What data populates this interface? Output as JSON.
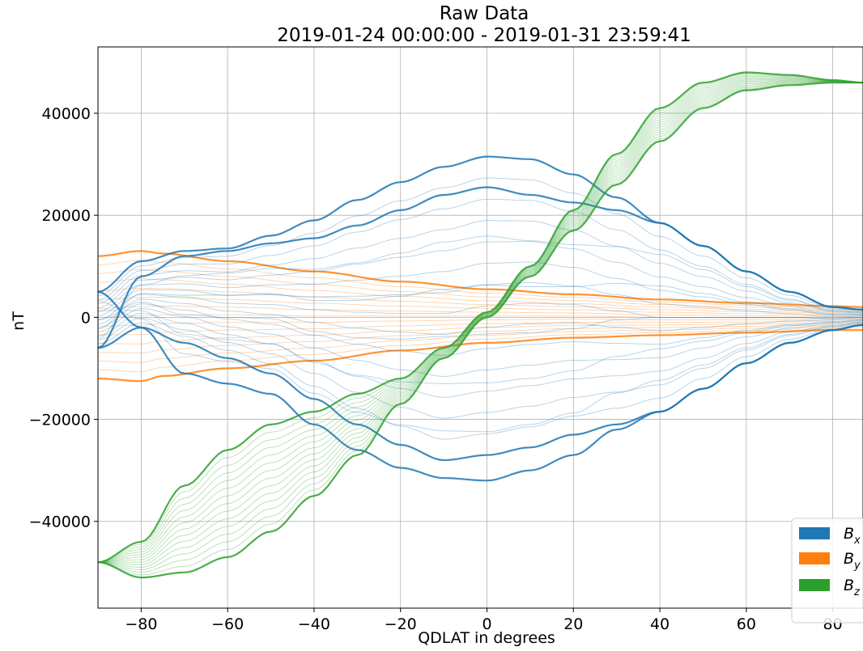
{
  "chart_data": {
    "type": "line",
    "title": "Raw Data",
    "subtitle": "2019-01-24 00:00:00 - 2019-01-31 23:59:41",
    "xlabel": "QDLAT in degrees",
    "ylabel": "nT",
    "xlim": [
      -90,
      87
    ],
    "ylim": [
      -57000,
      53000
    ],
    "xticks": [
      -80,
      -60,
      -40,
      -20,
      0,
      20,
      40,
      60,
      80
    ],
    "xtick_labels": [
      "−80",
      "−60",
      "−40",
      "−20",
      "0",
      "20",
      "40",
      "60",
      "80"
    ],
    "yticks": [
      -40000,
      -20000,
      0,
      20000,
      40000
    ],
    "ytick_labels": [
      "−40000",
      "−20000",
      "0",
      "20000",
      "40000"
    ],
    "grid": true,
    "legend_position": "bottom-right",
    "series": [
      {
        "name": "B_x",
        "label_main": "B",
        "label_sub": "x",
        "color": "#1f77b4",
        "x": [
          -90,
          -80,
          -70,
          -60,
          -50,
          -40,
          -30,
          -20,
          -10,
          0,
          10,
          20,
          30,
          40,
          50,
          60,
          70,
          80,
          87
        ],
        "upper": [
          5000,
          11000,
          13000,
          13500,
          16000,
          19000,
          23000,
          26500,
          29500,
          31500,
          31000,
          28000,
          23500,
          18500,
          14000,
          9000,
          5000,
          2000,
          1500
        ],
        "lower": [
          -6000,
          -2000,
          -5000,
          -8000,
          -11000,
          -16000,
          -21000,
          -25000,
          -28000,
          -27000,
          -25500,
          -23000,
          -21000,
          -18500,
          -14000,
          -9000,
          -5000,
          -2500,
          -1500
        ],
        "upper2": [
          -6000,
          8000,
          12000,
          13000,
          14500,
          15500,
          18000,
          21000,
          24000,
          25500,
          24000,
          22500,
          21000,
          18500,
          14000,
          9000,
          5000,
          2000,
          1500
        ],
        "lower2": [
          5000,
          -2000,
          -11000,
          -13000,
          -15000,
          -21000,
          -26000,
          -29500,
          -31500,
          -32000,
          -30000,
          -27000,
          -22000,
          -18500,
          -14000,
          -9000,
          -5000,
          -2500,
          -1500
        ]
      },
      {
        "name": "B_y",
        "label_main": "B",
        "label_sub": "y",
        "color": "#ff7f0e",
        "x": [
          -90,
          -80,
          -75,
          -60,
          -40,
          -20,
          0,
          20,
          40,
          60,
          80,
          87
        ],
        "upper": [
          12000,
          13000,
          12500,
          11000,
          9000,
          7000,
          5500,
          4500,
          3500,
          2800,
          2200,
          2000
        ],
        "lower": [
          -12000,
          -12500,
          -11500,
          -10000,
          -8500,
          -6500,
          -5000,
          -4000,
          -3500,
          -3000,
          -2500,
          -2500
        ]
      },
      {
        "name": "B_z",
        "label_main": "B",
        "label_sub": "z",
        "color": "#2ca02c",
        "x": [
          -90,
          -80,
          -70,
          -60,
          -50,
          -40,
          -30,
          -20,
          -10,
          0,
          10,
          20,
          30,
          40,
          50,
          60,
          70,
          80,
          87
        ],
        "upper": [
          -48000,
          -44000,
          -33000,
          -26000,
          -21000,
          -18500,
          -15000,
          -12000,
          -6000,
          1000,
          10000,
          21000,
          32000,
          41000,
          46000,
          48000,
          47500,
          46500,
          46000
        ],
        "lower": [
          -48000,
          -51000,
          -50000,
          -47000,
          -42000,
          -35000,
          -27000,
          -17000,
          -8000,
          0,
          8000,
          17000,
          26000,
          34500,
          41000,
          44500,
          45500,
          46000,
          46000
        ]
      }
    ]
  }
}
